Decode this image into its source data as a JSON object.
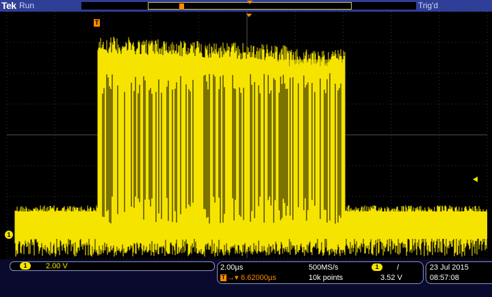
{
  "top_bar": {
    "brand": "Tek",
    "run_state": "Run",
    "trigger_state": "Trig'd"
  },
  "markers": {
    "trigger_position": "T",
    "channel1": "1"
  },
  "channel": {
    "number": "1",
    "scale": "2.00 V"
  },
  "timebase": {
    "scale": "2.00µs",
    "sample_rate": "500MS/s",
    "record_length": "10k points",
    "trigger_offset": "6.62000µs",
    "trigger_offset_prefix": "T",
    "arrows": "→▾"
  },
  "trigger": {
    "source": "1",
    "slope": "/",
    "level": "3.52 V"
  },
  "datetime": {
    "date": "23 Jul  2015",
    "time": "08:57:08"
  },
  "colors": {
    "waveform": "#f5e400",
    "trigger": "#ff8a00",
    "status_bar": "#2f3e96",
    "grid": "#3a3a3a"
  }
}
